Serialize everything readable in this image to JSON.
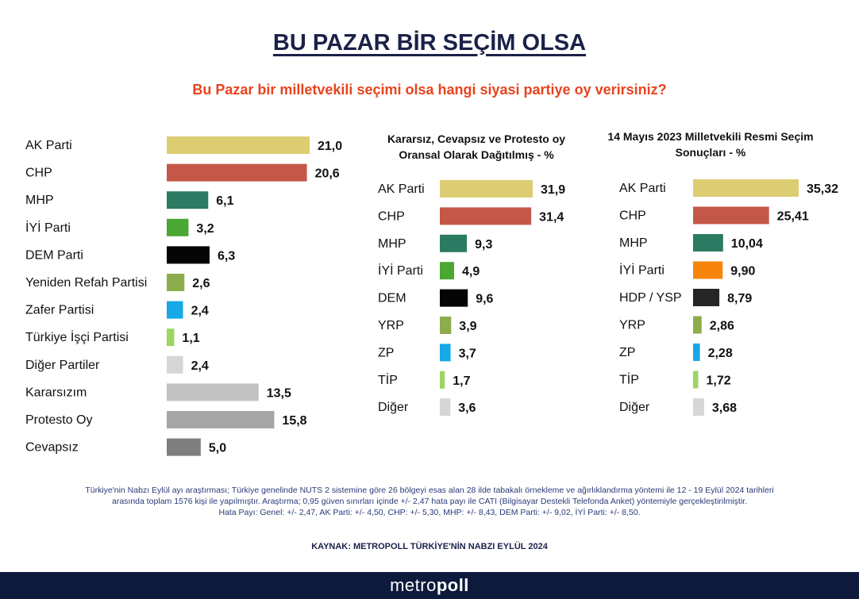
{
  "header": {
    "title": "BU PAZAR BİR SEÇİM OLSA",
    "question": "Bu Pazar bir milletvekili seçimi olsa hangi siyasi partiye oy verirsiniz?"
  },
  "chart_data": [
    {
      "type": "bar",
      "title": "",
      "categories": [
        "AK Parti",
        "CHP",
        "MHP",
        "İYİ Parti",
        "DEM Parti",
        "Yeniden Refah Partisi",
        "Zafer Partisi",
        "Türkiye İşçi Partisi",
        "Diğer Partiler",
        "Kararsızım",
        "Protesto Oy",
        "Cevapsız"
      ],
      "values": [
        21.0,
        20.6,
        6.1,
        3.2,
        6.3,
        2.6,
        2.4,
        1.1,
        2.4,
        13.5,
        15.8,
        5.0
      ],
      "value_labels": [
        "21,0",
        "20,6",
        "6,1",
        "3,2",
        "6,3",
        "2,6",
        "2,4",
        "1,1",
        "2,4",
        "13,5",
        "15,8",
        "5,0"
      ],
      "colors": [
        "#dccd72",
        "#c45848",
        "#2b7a62",
        "#49a732",
        "#050505",
        "#8dac4c",
        "#17a8e6",
        "#9dd462",
        "#d6d6d6",
        "#c1c1c1",
        "#a6a6a6",
        "#7f7f7f"
      ]
    },
    {
      "type": "bar",
      "title": "Kararsız, Cevapsız ve Protesto oy Oransal Olarak Dağıtılmış - %",
      "categories": [
        "AK Parti",
        "CHP",
        "MHP",
        "İYİ Parti",
        "DEM",
        "YRP",
        "ZP",
        "TİP",
        "Diğer"
      ],
      "values": [
        31.9,
        31.4,
        9.3,
        4.9,
        9.6,
        3.9,
        3.7,
        1.7,
        3.6
      ],
      "value_labels": [
        "31,9",
        "31,4",
        "9,3",
        "4,9",
        "9,6",
        "3,9",
        "3,7",
        "1,7",
        "3,6"
      ],
      "colors": [
        "#dccd72",
        "#c45848",
        "#2b7a62",
        "#49a732",
        "#050505",
        "#8dac4c",
        "#17a8e6",
        "#9dd462",
        "#d6d6d6"
      ]
    },
    {
      "type": "bar",
      "title": "14 Mayıs 2023 Milletvekili Resmi Seçim Sonuçları - %",
      "categories": [
        "AK Parti",
        "CHP",
        "MHP",
        "İYİ Parti",
        "HDP / YSP",
        "YRP",
        "ZP",
        "TİP",
        "Diğer"
      ],
      "values": [
        35.32,
        25.41,
        10.04,
        9.9,
        8.79,
        2.86,
        2.28,
        1.72,
        3.68
      ],
      "value_labels": [
        "35,32",
        "25,41",
        "10,04",
        "9,90",
        "8,79",
        "2,86",
        "2,28",
        "1,72",
        "3,68"
      ],
      "colors": [
        "#dccd72",
        "#c45848",
        "#2b7a62",
        "#f7850b",
        "#262626",
        "#8dac4c",
        "#17a8e6",
        "#9dd462",
        "#d6d6d6"
      ]
    }
  ],
  "footnote": {
    "line1": "Türkiye'nin Nabzı Eylül ayı araştırması; Türkiye genelinde NUTS 2 sistemine göre 26 bölgeyi esas alan 28 ilde tabakalı örnekleme ve ağırlıklandırma yöntemi ile 12 - 19 Eylül 2024 tarihleri",
    "line2": "arasında toplam 1576 kişi ile yapılmıştır. Araştırma; 0,95 güven sınırları içinde +/- 2,47 hata payı ile CATI (Bilgisayar Destekli Telefonda Anket) yöntemiyle gerçekleştirilmiştir.",
    "line3": "Hata Payı: Genel: +/- 2,47, AK Parti: +/- 4,50, CHP: +/- 5,30, MHP: +/- 8,43, DEM Parti: +/- 9,02, İYİ Parti: +/- 8,50."
  },
  "source": "KAYNAK: METROPOLL TÜRKİYE'NİN NABZI EYLÜL 2024",
  "brand": {
    "part1": "metro",
    "part2": "poll"
  }
}
